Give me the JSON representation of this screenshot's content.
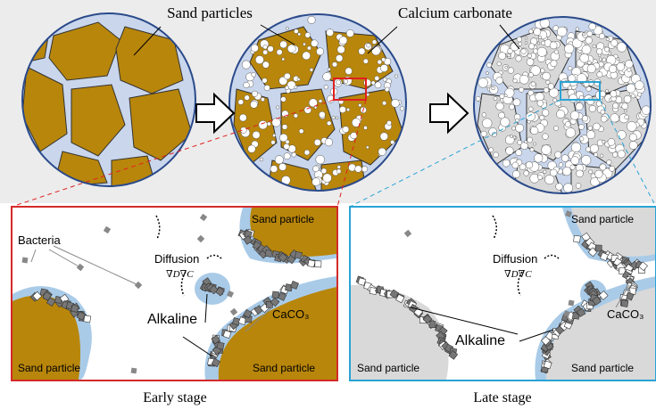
{
  "top": {
    "sand_label": "Sand particles",
    "carbonate_label": "Calcium carbonate"
  },
  "early": {
    "caption": "Early stage",
    "bacteria": "Bacteria",
    "diffusion": "Diffusion",
    "gradient": "∇D∇C",
    "alkaline": "Alkaline",
    "product": "CaCO₃",
    "sand_labels": [
      "Sand particle",
      "Sand particle",
      "Sand particle"
    ]
  },
  "late": {
    "caption": "Late stage",
    "diffusion": "Diffusion",
    "gradient": "∇D∇C",
    "alkaline": "Alkaline",
    "product": "CaCO₃",
    "sand_labels": [
      "Sand particle",
      "Sand particle",
      "Sand particle"
    ]
  }
}
